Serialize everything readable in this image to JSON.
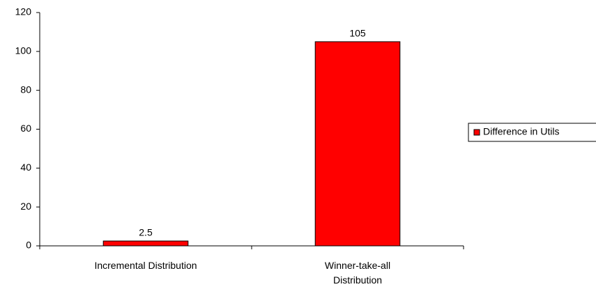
{
  "chart_data": {
    "type": "bar",
    "categories": [
      "Incremental Distribution",
      "Winner-take-all Distribution"
    ],
    "series": [
      {
        "name": "Difference in Utils",
        "color": "#ff0000",
        "values": [
          2.5,
          105
        ]
      }
    ],
    "ylim": [
      0,
      120
    ],
    "yticks": [
      0,
      20,
      40,
      60,
      80,
      100,
      120
    ],
    "grid": false,
    "legend": "right"
  }
}
